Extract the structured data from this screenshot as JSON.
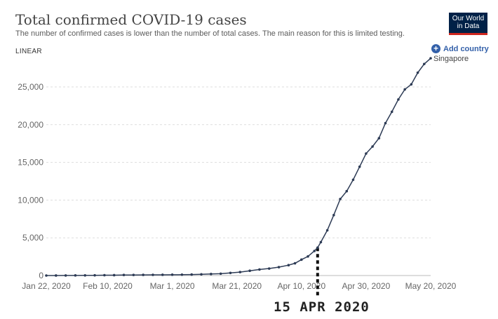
{
  "header": {
    "title": "Total confirmed COVID-19 cases",
    "subtitle": "The number of confirmed cases is lower than the number of total cases. The main reason for this is limited testing.",
    "scale_toggle": "LINEAR",
    "logo_line1": "Our World",
    "logo_line2": "in Data",
    "add_country_label": "Add country"
  },
  "annotation": {
    "date_label": "15 APR 2020"
  },
  "colors": {
    "series": "#2d3b55",
    "grid": "#dddddd",
    "tick_text": "#666666",
    "accent_blue": "#3360a9",
    "logo_bg": "#002147",
    "logo_red": "#ce261e"
  },
  "chart_data": {
    "type": "line",
    "title": "Total confirmed COVID-19 cases",
    "xlabel": "",
    "ylabel": "",
    "y_ticks": [
      0,
      5000,
      10000,
      15000,
      20000,
      25000
    ],
    "y_tick_labels": [
      "0",
      "5,000",
      "10,000",
      "15,000",
      "20,000",
      "25,000"
    ],
    "x_tick_labels": [
      "Jan 22, 2020",
      "Feb 10, 2020",
      "Mar 1, 2020",
      "Mar 21, 2020",
      "Apr 10, 2020",
      "Apr 30, 2020",
      "May 20, 2020"
    ],
    "x_tick_dates": [
      "2020-01-22",
      "2020-02-10",
      "2020-03-01",
      "2020-03-21",
      "2020-04-10",
      "2020-04-30",
      "2020-05-20"
    ],
    "xlim": [
      "2020-01-22",
      "2020-05-20"
    ],
    "ylim": [
      0,
      28500
    ],
    "grid": "horizontal dashed",
    "highlight_date": "2020-04-15",
    "series": [
      {
        "name": "Singapore",
        "points": [
          [
            "2020-01-22",
            0
          ],
          [
            "2020-01-25",
            3
          ],
          [
            "2020-01-28",
            7
          ],
          [
            "2020-01-31",
            13
          ],
          [
            "2020-02-03",
            18
          ],
          [
            "2020-02-06",
            30
          ],
          [
            "2020-02-09",
            43
          ],
          [
            "2020-02-12",
            50
          ],
          [
            "2020-02-15",
            72
          ],
          [
            "2020-02-18",
            77
          ],
          [
            "2020-02-21",
            86
          ],
          [
            "2020-02-24",
            90
          ],
          [
            "2020-02-27",
            96
          ],
          [
            "2020-03-01",
            106
          ],
          [
            "2020-03-04",
            112
          ],
          [
            "2020-03-07",
            130
          ],
          [
            "2020-03-10",
            160
          ],
          [
            "2020-03-13",
            200
          ],
          [
            "2020-03-16",
            243
          ],
          [
            "2020-03-19",
            345
          ],
          [
            "2020-03-22",
            455
          ],
          [
            "2020-03-25",
            631
          ],
          [
            "2020-03-28",
            802
          ],
          [
            "2020-03-31",
            926
          ],
          [
            "2020-04-03",
            1114
          ],
          [
            "2020-04-06",
            1375
          ],
          [
            "2020-04-08",
            1623
          ],
          [
            "2020-04-10",
            2108
          ],
          [
            "2020-04-12",
            2532
          ],
          [
            "2020-04-14",
            3252
          ],
          [
            "2020-04-15",
            3699
          ],
          [
            "2020-04-16",
            4427
          ],
          [
            "2020-04-18",
            5992
          ],
          [
            "2020-04-20",
            8014
          ],
          [
            "2020-04-22",
            10141
          ],
          [
            "2020-04-24",
            11178
          ],
          [
            "2020-04-26",
            12693
          ],
          [
            "2020-04-28",
            14423
          ],
          [
            "2020-04-30",
            16169
          ],
          [
            "2020-05-02",
            17101
          ],
          [
            "2020-05-04",
            18205
          ],
          [
            "2020-05-06",
            20198
          ],
          [
            "2020-05-08",
            21707
          ],
          [
            "2020-05-10",
            23336
          ],
          [
            "2020-05-12",
            24671
          ],
          [
            "2020-05-14",
            25346
          ],
          [
            "2020-05-16",
            26891
          ],
          [
            "2020-05-18",
            28038
          ],
          [
            "2020-05-20",
            28794
          ]
        ]
      }
    ]
  }
}
